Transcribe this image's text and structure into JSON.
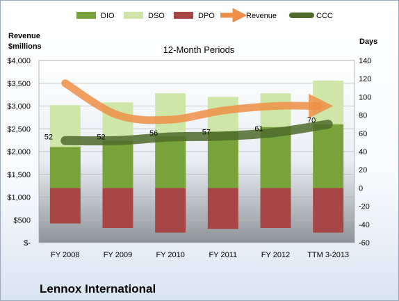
{
  "chart_data": {
    "type": "bar",
    "title": "12-Month Periods",
    "company": "Lennox International",
    "left_axis": {
      "label_line1": "Revenue",
      "label_line2": "$millions",
      "ticks": [
        0,
        500,
        1000,
        1500,
        2000,
        2500,
        3000,
        3500,
        4000
      ],
      "tick_labels": [
        "$-",
        "$500",
        "$1,000",
        "$1,500",
        "$2,000",
        "$2,500",
        "$3,000",
        "$3,500",
        "$4,000"
      ],
      "ylim": [
        0,
        4000
      ]
    },
    "right_axis": {
      "label": "Days",
      "ticks": [
        -60,
        -40,
        -20,
        0,
        20,
        40,
        60,
        80,
        100,
        120,
        140
      ],
      "tick_labels": [
        "-60",
        "-40",
        "-20",
        "0",
        "20",
        "40",
        "60",
        "80",
        "100",
        "120",
        "140"
      ],
      "ylim": [
        -60,
        140
      ]
    },
    "categories": [
      "FY 2008",
      "FY 2009",
      "FY 2010",
      "FY 2011",
      "FY 2012",
      "TTM 3-2013"
    ],
    "legend": {
      "placement": "top",
      "entries": [
        {
          "key": "dio",
          "label": "DIO"
        },
        {
          "key": "dso",
          "label": "DSO"
        },
        {
          "key": "dpo",
          "label": "DPO"
        },
        {
          "key": "revenue",
          "label": "Revenue"
        },
        {
          "key": "ccc",
          "label": "CCC"
        }
      ]
    },
    "series": [
      {
        "key": "dio",
        "name": "DIO",
        "axis": "right",
        "color": "#77a33a",
        "values": [
          -44,
          -47,
          -49,
          -45,
          -45,
          -49
        ]
      },
      {
        "key": "dso",
        "name": "DSO",
        "axis": "right",
        "color": "#cfe6a9",
        "values": [
          0,
          0,
          0,
          0,
          0,
          0
        ]
      },
      {
        "key": "dpo",
        "name": "DPO",
        "axis": "right",
        "color": "#a84646",
        "values": [
          0,
          0,
          0,
          0,
          0,
          0
        ]
      },
      {
        "key": "revenue",
        "name": "Revenue",
        "axis": "left",
        "color": "#ee8f47",
        "values": [
          3500,
          2800,
          2700,
          2900,
          3000,
          3000
        ]
      },
      {
        "key": "ccc",
        "name": "CCC",
        "axis": "right",
        "color": "#4e6b2c",
        "values": [
          52,
          52,
          56,
          57,
          61,
          70
        ],
        "labels": [
          "52",
          "52",
          "56",
          "57",
          "61",
          "70"
        ]
      }
    ],
    "stack_values_right_axis": {
      "dpo_bottom": [
        -39,
        -44,
        -49,
        -45,
        -44,
        -49
      ],
      "dio_top": [
        45,
        52,
        57,
        62,
        67,
        70
      ],
      "dso_top": [
        91,
        94,
        104,
        100,
        104,
        118
      ]
    },
    "grid": true
  }
}
